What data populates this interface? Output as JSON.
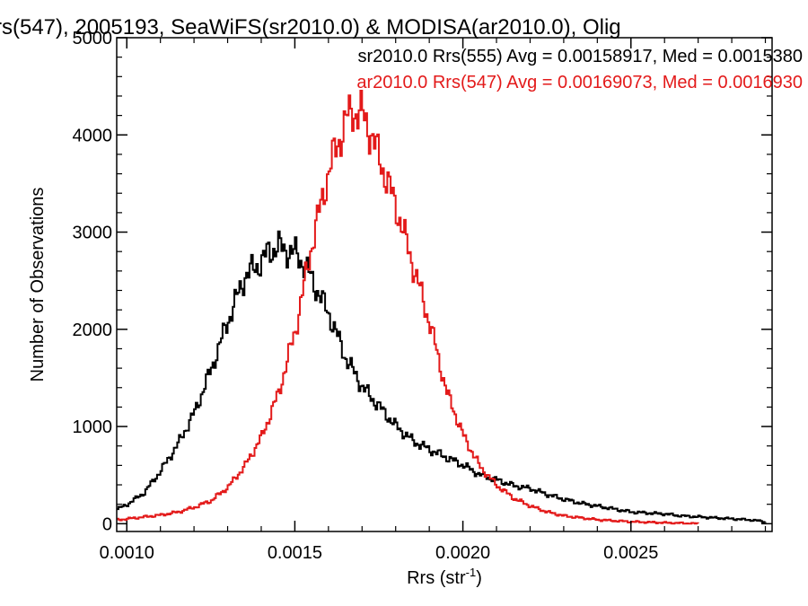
{
  "chart_data": {
    "type": "line",
    "title": "rs(547), 2005193, SeaWiFS(sr2010.0) & MODISA(ar2010.0), Olig",
    "xlabel_main": "Rrs (str",
    "xlabel_sup": "-1",
    "xlabel_close": ")",
    "ylabel": "Number of Observations",
    "xlim": [
      0.00097,
      0.00292
    ],
    "ylim": [
      -80,
      5000
    ],
    "x_ticks": [
      {
        "value": 0.001,
        "label": "0.0010"
      },
      {
        "value": 0.0015,
        "label": "0.0015"
      },
      {
        "value": 0.002,
        "label": "0.0020"
      },
      {
        "value": 0.0025,
        "label": "0.0025"
      }
    ],
    "y_ticks": [
      {
        "value": 0,
        "label": "0"
      },
      {
        "value": 1000,
        "label": "1000"
      },
      {
        "value": 2000,
        "label": "2000"
      },
      {
        "value": 3000,
        "label": "3000"
      },
      {
        "value": 4000,
        "label": "4000"
      },
      {
        "value": 5000,
        "label": "5000"
      }
    ],
    "x_minor_step": 0.0001,
    "y_minor_step": 200,
    "grid": false,
    "legend_position": "top-right",
    "series": [
      {
        "name": "sr2010.0 Rrs(555) Avg = 0.00158917, Med = 0.0015380",
        "color": "#000000",
        "x": [
          0.00097,
          0.001,
          0.00105,
          0.0011,
          0.00115,
          0.0012,
          0.00125,
          0.0013,
          0.00135,
          0.0014,
          0.00142,
          0.00145,
          0.00148,
          0.0015,
          0.00153,
          0.00155,
          0.0016,
          0.00165,
          0.0017,
          0.00175,
          0.0018,
          0.00185,
          0.0019,
          0.00195,
          0.002,
          0.00205,
          0.0021,
          0.00215,
          0.0022,
          0.00225,
          0.0023,
          0.00235,
          0.0024,
          0.00245,
          0.0025,
          0.00255,
          0.0026,
          0.00265,
          0.0027,
          0.00275,
          0.0028,
          0.00285,
          0.0029
        ],
        "y": [
          150,
          200,
          320,
          550,
          820,
          1150,
          1600,
          2100,
          2550,
          2700,
          2800,
          2850,
          2800,
          2780,
          2650,
          2500,
          2150,
          1700,
          1400,
          1200,
          1000,
          850,
          760,
          680,
          600,
          500,
          450,
          390,
          360,
          300,
          250,
          210,
          180,
          150,
          120,
          110,
          100,
          80,
          70,
          60,
          50,
          40,
          20
        ]
      },
      {
        "name": "ar2010.0 Rrs(547) Avg = 0.00169073, Med = 0.0016930",
        "color": "#e31a1a",
        "x": [
          0.00097,
          0.001,
          0.00105,
          0.0011,
          0.00115,
          0.0012,
          0.00125,
          0.0013,
          0.00135,
          0.0014,
          0.00145,
          0.0015,
          0.00155,
          0.0016,
          0.00163,
          0.00165,
          0.00167,
          0.0017,
          0.00172,
          0.00175,
          0.0018,
          0.00185,
          0.0019,
          0.00195,
          0.002,
          0.00205,
          0.0021,
          0.00215,
          0.0022,
          0.00225,
          0.0023,
          0.00235,
          0.0024,
          0.00245,
          0.0025,
          0.00255,
          0.0026,
          0.00265,
          0.0027
        ],
        "y": [
          40,
          50,
          70,
          90,
          120,
          170,
          240,
          380,
          600,
          900,
          1350,
          2000,
          2900,
          3650,
          3950,
          4150,
          4250,
          4200,
          4050,
          3750,
          3250,
          2650,
          2050,
          1350,
          900,
          580,
          390,
          260,
          180,
          120,
          80,
          60,
          40,
          30,
          20,
          15,
          10,
          5,
          0
        ]
      }
    ]
  }
}
